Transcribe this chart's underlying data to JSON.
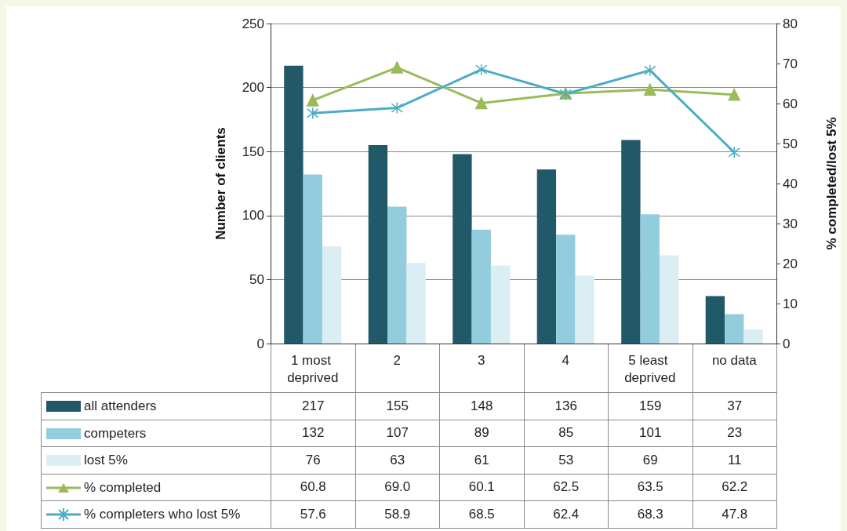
{
  "chart_data": {
    "type": "bar",
    "ylabel": "Number of clients",
    "y2label": "% completed/lost 5%",
    "categories": [
      "1 most deprived",
      "2",
      "3",
      "4",
      "5 least deprived",
      "no data"
    ],
    "series": [
      {
        "name": "all attenders",
        "color": "#215968",
        "values": [
          217,
          155,
          148,
          136,
          159,
          37
        ]
      },
      {
        "name": "competers",
        "color": "#93cddd",
        "values": [
          132,
          107,
          89,
          85,
          101,
          23
        ]
      },
      {
        "name": "lost 5%",
        "color": "#dbeef4",
        "values": [
          76,
          63,
          61,
          53,
          69,
          11
        ]
      },
      {
        "name": "% completed",
        "type": "line",
        "axis": "y2",
        "marker": "triangle",
        "color": "#9bbb59",
        "values": [
          60.8,
          69.0,
          60.1,
          62.5,
          63.5,
          62.2
        ],
        "value_labels": [
          "60.8",
          "69.0",
          "60.1",
          "62.5",
          "63.5",
          "62.2"
        ]
      },
      {
        "name": "% completers who lost 5%",
        "type": "line",
        "axis": "y2",
        "marker": "cross",
        "color": "#4bacc6",
        "values": [
          57.6,
          58.9,
          68.5,
          62.4,
          68.3,
          47.8
        ],
        "value_labels": [
          "57.6",
          "58.9",
          "68.5",
          "62.4",
          "68.3",
          "47.8"
        ]
      }
    ],
    "ylim": [
      0,
      250
    ],
    "yticks": [
      0,
      50,
      100,
      150,
      200,
      250
    ],
    "y2lim": [
      0,
      80
    ],
    "y2ticks": [
      0,
      10,
      20,
      30,
      40,
      50,
      60,
      70,
      80
    ],
    "grid": "y",
    "legend": "bottom",
    "data_labels": true,
    "line_style": "solid"
  }
}
